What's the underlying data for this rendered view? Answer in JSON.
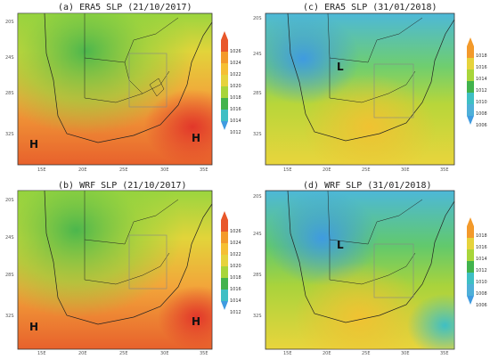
{
  "panels": [
    {
      "id": "a",
      "title": "(a) ERA5 SLP (21/10/2017)",
      "lat_labels": [
        "20S",
        "24S",
        "28S",
        "32S"
      ],
      "lon_labels": [
        "15E",
        "20E",
        "25E",
        "30E",
        "35E"
      ],
      "colorbar": [
        "1026",
        "1024",
        "1022",
        "1020",
        "1018",
        "1016",
        "1014",
        "1012"
      ],
      "pressure_centres": [
        "H",
        "H"
      ]
    },
    {
      "id": "b",
      "title": "(b) WRF SLP (21/10/2017)",
      "lat_labels": [
        "20S",
        "24S",
        "28S",
        "32S"
      ],
      "lon_labels": [
        "15E",
        "20E",
        "25E",
        "30E",
        "35E"
      ],
      "colorbar": [
        "1026",
        "1024",
        "1022",
        "1020",
        "1018",
        "1016",
        "1014",
        "1012"
      ],
      "pressure_centres": [
        "H",
        "H"
      ]
    },
    {
      "id": "c",
      "title": "(c) ERA5 SLP (31/01/2018)",
      "lat_labels": [
        "20S",
        "24S",
        "28S",
        "32S"
      ],
      "lon_labels": [
        "15E",
        "20E",
        "25E",
        "30E",
        "35E"
      ],
      "colorbar": [
        "1018",
        "1016",
        "1014",
        "1012",
        "1010",
        "1008",
        "1006"
      ],
      "pressure_centres": [
        "L"
      ]
    },
    {
      "id": "d",
      "title": "(d) WRF SLP (31/01/2018)",
      "lat_labels": [
        "20S",
        "24S",
        "28S",
        "32S"
      ],
      "lon_labels": [
        "15E",
        "20E",
        "25E",
        "30E",
        "35E"
      ],
      "colorbar": [
        "1018",
        "1016",
        "1014",
        "1012",
        "1010",
        "1008",
        "1006"
      ],
      "pressure_centres": [
        "L"
      ]
    }
  ],
  "colors": {
    "red": "#e8572a",
    "orange": "#f39a2b",
    "yellow": "#e6d33c",
    "light_green": "#a8d53a",
    "green": "#42b34d",
    "cyan": "#3fbfc4",
    "blue": "#3f9be0"
  }
}
